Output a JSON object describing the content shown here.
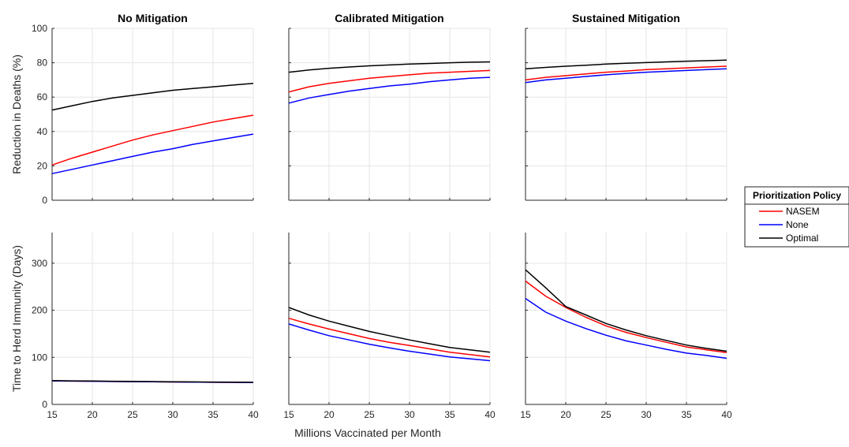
{
  "chart_data": {
    "type": "line",
    "xlabel": "Millions Vaccinated per Month",
    "x": [
      15,
      17.5,
      20,
      22.5,
      25,
      27.5,
      30,
      32.5,
      35,
      37.5,
      40
    ],
    "xlim": [
      15,
      40
    ],
    "xticks": [
      15,
      20,
      25,
      30,
      35,
      40
    ],
    "legend": {
      "title": "Prioritization Policy",
      "placement": "right",
      "entries": [
        "NASEM",
        "None",
        "Optimal"
      ]
    },
    "colors": {
      "NASEM": "#ff0000",
      "None": "#0000ff",
      "Optimal": "#000000"
    },
    "columns": [
      "No Mitigation",
      "Calibrated Mitigation",
      "Sustained Mitigation"
    ],
    "rows": [
      {
        "ylabel": "Reduction in Deaths (%)",
        "ylim": [
          0,
          100
        ],
        "yticks": [
          0,
          20,
          40,
          60,
          80,
          100
        ],
        "panels": [
          {
            "title": "No Mitigation",
            "series": [
              {
                "name": "NASEM",
                "values": [
                  20.5,
                  24.5,
                  28,
                  31.5,
                  35,
                  38,
                  40.5,
                  43,
                  45.5,
                  47.5,
                  49.5
                ]
              },
              {
                "name": "None",
                "values": [
                  15.5,
                  18,
                  20.5,
                  23,
                  25.5,
                  28,
                  30,
                  32.5,
                  34.5,
                  36.5,
                  38.5
                ]
              },
              {
                "name": "Optimal",
                "values": [
                  52.5,
                  55,
                  57.5,
                  59.5,
                  61,
                  62.5,
                  64,
                  65,
                  66,
                  67,
                  68
                ]
              }
            ]
          },
          {
            "title": "Calibrated Mitigation",
            "series": [
              {
                "name": "NASEM",
                "values": [
                  63,
                  66,
                  68,
                  69.5,
                  71,
                  72,
                  73,
                  74,
                  74.5,
                  75,
                  75.5
                ]
              },
              {
                "name": "None",
                "values": [
                  56.5,
                  59.5,
                  61.5,
                  63.5,
                  65,
                  66.5,
                  67.5,
                  69,
                  70,
                  71,
                  71.5
                ]
              },
              {
                "name": "Optimal",
                "values": [
                  74.5,
                  75.8,
                  76.8,
                  77.5,
                  78.2,
                  78.7,
                  79.2,
                  79.6,
                  80,
                  80.3,
                  80.5
                ]
              }
            ]
          },
          {
            "title": "Sustained Mitigation",
            "series": [
              {
                "name": "NASEM",
                "values": [
                  70,
                  71.5,
                  72.5,
                  73.5,
                  74.5,
                  75.2,
                  76,
                  76.5,
                  77,
                  77.5,
                  78
                ]
              },
              {
                "name": "None",
                "values": [
                  68.5,
                  70,
                  71,
                  72,
                  73,
                  73.8,
                  74.5,
                  75,
                  75.5,
                  76,
                  76.5
                ]
              },
              {
                "name": "Optimal",
                "values": [
                  76.5,
                  77.3,
                  78,
                  78.6,
                  79.2,
                  79.7,
                  80.1,
                  80.5,
                  80.9,
                  81.2,
                  81.5
                ]
              }
            ]
          }
        ]
      },
      {
        "ylabel": "Time to Herd Immunity (Days)",
        "ylim": [
          0,
          365
        ],
        "yticks": [
          0,
          100,
          200,
          300
        ],
        "panels": [
          {
            "title": "",
            "series": [
              {
                "name": "NASEM",
                "values": [
                  50,
                  49.6,
                  49.2,
                  48.8,
                  48.4,
                  48,
                  47.7,
                  47.4,
                  47.1,
                  46.8,
                  46.5
                ]
              },
              {
                "name": "None",
                "values": [
                  50,
                  49.6,
                  49.2,
                  48.8,
                  48.4,
                  48,
                  47.7,
                  47.4,
                  47.1,
                  46.8,
                  46.5
                ]
              },
              {
                "name": "Optimal",
                "values": [
                  50.5,
                  50.1,
                  49.7,
                  49.3,
                  48.9,
                  48.5,
                  48.2,
                  47.9,
                  47.6,
                  47.3,
                  47
                ]
              }
            ]
          },
          {
            "title": "",
            "series": [
              {
                "name": "NASEM",
                "values": [
                  183,
                  171,
                  160,
                  150,
                  140,
                  132,
                  125,
                  118,
                  111,
                  106,
                  101
                ]
              },
              {
                "name": "None",
                "values": [
                  171,
                  158,
                  146,
                  137,
                  128,
                  120,
                  113,
                  107,
                  101,
                  97,
                  93
                ]
              },
              {
                "name": "Optimal",
                "values": [
                  206,
                  190,
                  177,
                  166,
                  155,
                  146,
                  137,
                  129,
                  121,
                  116,
                  111
                ]
              }
            ]
          },
          {
            "title": "",
            "series": [
              {
                "name": "NASEM",
                "values": [
                  262,
                  230,
                  206,
                  185,
                  167,
                  153,
                  142,
                  132,
                  122,
                  116,
                  110
                ]
              },
              {
                "name": "None",
                "values": [
                  225,
                  196,
                  177,
                  161,
                  147,
                  135,
                  126,
                  117,
                  109,
                  104,
                  98
                ]
              },
              {
                "name": "Optimal",
                "values": [
                  286,
                  248,
                  208,
                  190,
                  172,
                  158,
                  146,
                  136,
                  126,
                  119,
                  113
                ]
              }
            ]
          }
        ]
      }
    ]
  }
}
